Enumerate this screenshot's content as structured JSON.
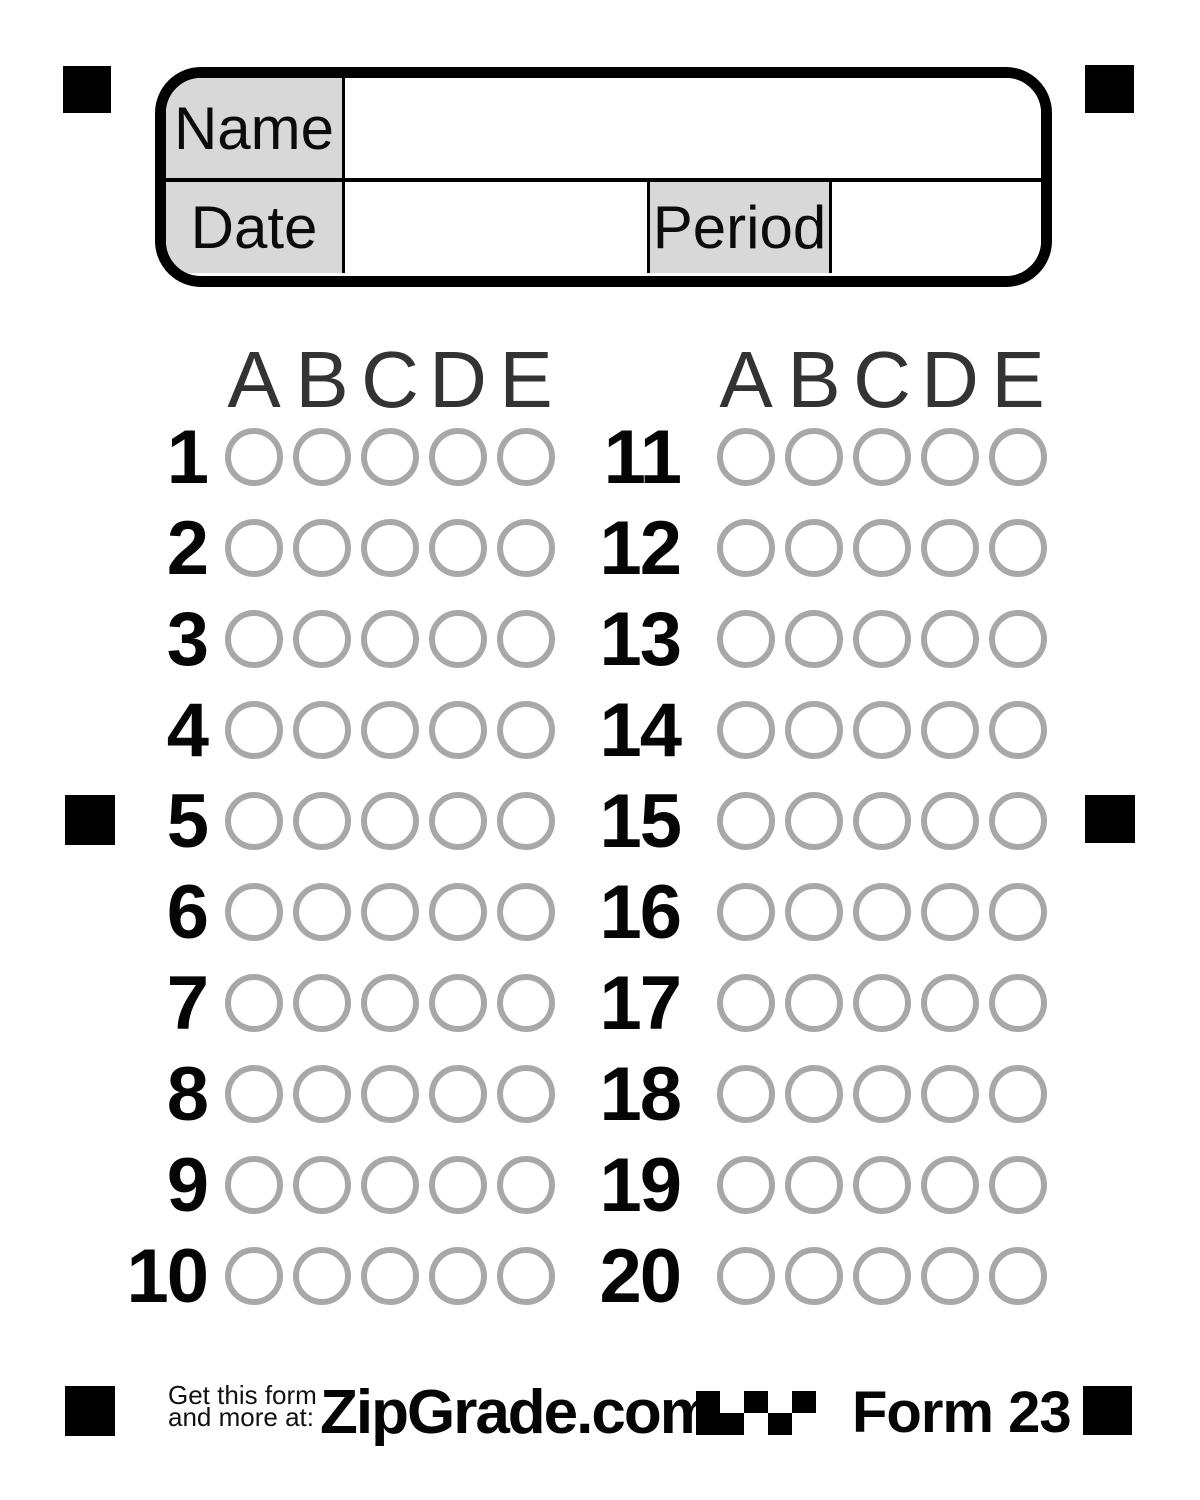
{
  "header": {
    "name_label": "Name",
    "date_label": "Date",
    "period_label": "Period"
  },
  "answer_grid": {
    "choices": [
      "A",
      "B",
      "C",
      "D",
      "E"
    ],
    "columns": [
      {
        "questions": [
          "1",
          "2",
          "3",
          "4",
          "5",
          "6",
          "7",
          "8",
          "9",
          "10"
        ]
      },
      {
        "questions": [
          "11",
          "12",
          "13",
          "14",
          "15",
          "16",
          "17",
          "18",
          "19",
          "20"
        ]
      }
    ]
  },
  "footer": {
    "promo_line1": "Get this form",
    "promo_line2": "and more at:",
    "brand": "ZipGrade.com",
    "form_label": "Form 23",
    "code_pattern": [
      [
        1,
        0,
        1,
        0,
        1
      ],
      [
        1,
        1,
        0,
        1,
        0
      ]
    ]
  },
  "colors": {
    "ink": "#000000",
    "page_bg": "#ffffff",
    "label_cell_bg": "#d8d8d8",
    "bubble_outline": "#a8a8a8",
    "choice_letter": "#333333"
  }
}
